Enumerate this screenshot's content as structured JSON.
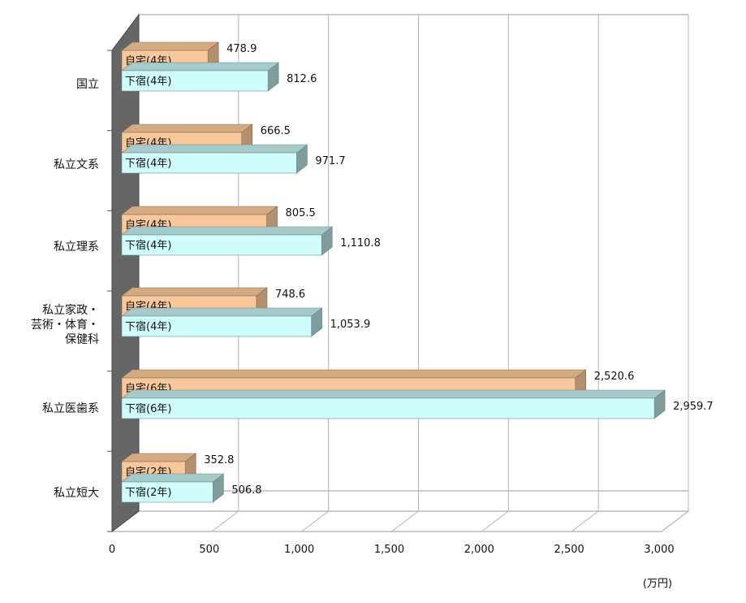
{
  "chart_data": {
    "type": "bar",
    "orientation": "horizontal",
    "style": "3d",
    "categories": [
      [
        "国立"
      ],
      [
        "私立文系"
      ],
      [
        "私立理系"
      ],
      [
        "私立家政・",
        "芸術・体育・",
        "保健科"
      ],
      [
        "私立医歯系"
      ],
      [
        "私立短大"
      ]
    ],
    "series": [
      {
        "color": "#f9c89a",
        "labels": [
          "自宅(4年)",
          "自宅(4年)",
          "自宅(4年)",
          "自宅(4年)",
          "自宅(6年)",
          "自宅(2年)"
        ],
        "values": [
          478.9,
          666.5,
          805.5,
          748.6,
          2520.6,
          352.8
        ],
        "value_labels": [
          "478.9",
          "666.5",
          "805.5",
          "748.6",
          "2,520.6",
          "352.8"
        ]
      },
      {
        "color": "#cffcfc",
        "labels": [
          "下宿(4年)",
          "下宿(4年)",
          "下宿(4年)",
          "下宿(4年)",
          "下宿(6年)",
          "下宿(2年)"
        ],
        "values": [
          812.6,
          971.7,
          1110.8,
          1053.9,
          2959.7,
          506.8
        ],
        "value_labels": [
          "812.6",
          "971.7",
          "1,110.8",
          "1,053.9",
          "2,959.7",
          "506.8"
        ]
      }
    ],
    "xlim": [
      0,
      3000
    ],
    "ticks": [
      0,
      500,
      1000,
      1500,
      2000,
      2500,
      3000
    ],
    "tick_labels": [
      "0",
      "500",
      "1,000",
      "1,500",
      "2,000",
      "2,500",
      "3,000"
    ],
    "unit": "(万円)",
    "grid": true,
    "legend": "none"
  }
}
